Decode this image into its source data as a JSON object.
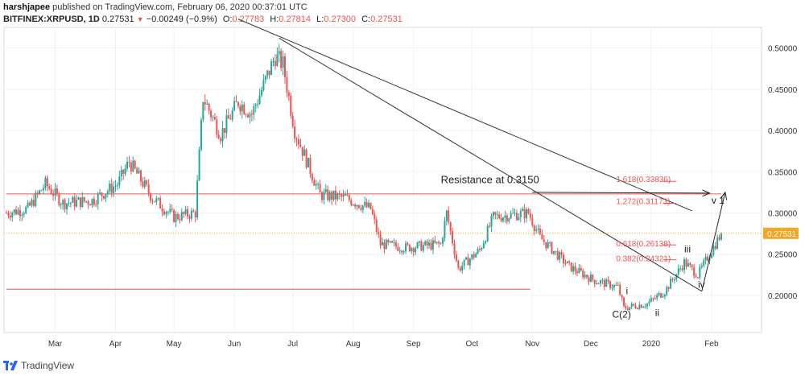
{
  "header": {
    "publisher": "harshjapee",
    "published_text": "published on TradingView.com, February 06, 2020 00:37:01 UTC",
    "symbol": "BITFINEX:XRPUSD, 1D",
    "last": "0.27531",
    "change": "−0.00249 (−0.9%)",
    "open_label": "O:",
    "open": "0.27783",
    "high_label": "H:",
    "high": "0.27814",
    "low_label": "L:",
    "low": "0.27300",
    "close_label": "C:",
    "close": "0.27531"
  },
  "footer": {
    "brand": "TradingView"
  },
  "colors": {
    "up": "#26a69a",
    "down": "#ef5350",
    "support": "#ef5350",
    "price_line": "#f5a623",
    "trendline": "#333333",
    "fib": "#ef5350"
  },
  "chart_data": {
    "type": "candlestick",
    "ylim": [
      0.155,
      0.525
    ],
    "y_ticks": [
      "0.50000",
      "0.45000",
      "0.40000",
      "0.35000",
      "0.30000",
      "0.25000",
      "0.20000"
    ],
    "y_tick_values": [
      0.5,
      0.45,
      0.4,
      0.35,
      0.3,
      0.25,
      0.2
    ],
    "x_ticks": [
      "Mar",
      "Apr",
      "May",
      "Jun",
      "Jul",
      "Aug",
      "Sep",
      "Oct",
      "Nov",
      "Dec",
      "2020",
      "Feb"
    ],
    "x_tick_dates": [
      "2019-03-01",
      "2019-04-01",
      "2019-05-01",
      "2019-06-01",
      "2019-07-01",
      "2019-08-01",
      "2019-09-01",
      "2019-10-01",
      "2019-11-01",
      "2019-12-01",
      "2020-01-01",
      "2020-02-01"
    ],
    "date_range": [
      "2019-02-04",
      "2020-02-06"
    ],
    "last_price": 0.27531,
    "last_price_label": "0.27531",
    "price_path": [
      [
        "2019-02-04",
        0.3
      ],
      [
        "2019-02-15",
        0.305
      ],
      [
        "2019-02-24",
        0.335
      ],
      [
        "2019-03-05",
        0.312
      ],
      [
        "2019-03-20",
        0.315
      ],
      [
        "2019-04-02",
        0.335
      ],
      [
        "2019-04-08",
        0.362
      ],
      [
        "2019-04-20",
        0.318
      ],
      [
        "2019-05-01",
        0.295
      ],
      [
        "2019-05-12",
        0.3
      ],
      [
        "2019-05-16",
        0.44
      ],
      [
        "2019-05-25",
        0.395
      ],
      [
        "2019-06-03",
        0.435
      ],
      [
        "2019-06-10",
        0.42
      ],
      [
        "2019-06-22",
        0.49
      ],
      [
        "2019-06-26",
        0.48
      ],
      [
        "2019-07-02",
        0.4
      ],
      [
        "2019-07-15",
        0.322
      ],
      [
        "2019-07-28",
        0.318
      ],
      [
        "2019-08-10",
        0.305
      ],
      [
        "2019-08-15",
        0.262
      ],
      [
        "2019-08-28",
        0.258
      ],
      [
        "2019-09-15",
        0.262
      ],
      [
        "2019-09-18",
        0.3
      ],
      [
        "2019-09-24",
        0.232
      ],
      [
        "2019-10-05",
        0.255
      ],
      [
        "2019-10-12",
        0.295
      ],
      [
        "2019-10-30",
        0.3
      ],
      [
        "2019-11-05",
        0.27
      ],
      [
        "2019-11-20",
        0.235
      ],
      [
        "2019-12-03",
        0.218
      ],
      [
        "2019-12-15",
        0.21
      ],
      [
        "2019-12-18",
        0.185
      ],
      [
        "2019-12-30",
        0.19
      ],
      [
        "2020-01-08",
        0.205
      ],
      [
        "2020-01-18",
        0.24
      ],
      [
        "2020-01-25",
        0.225
      ],
      [
        "2020-02-06",
        0.27531
      ]
    ],
    "horizontal_lines": [
      {
        "price": 0.323,
        "from": "2019-02-04",
        "to": "2020-02-06"
      },
      {
        "price": 0.2075,
        "from": "2019-02-04",
        "to": "2019-10-31"
      }
    ],
    "trendlines": [
      {
        "from": [
          "2019-06-03",
          0.535
        ],
        "to": [
          "2020-01-22",
          0.3025
        ]
      },
      {
        "from": [
          "2019-06-24",
          0.512
        ],
        "to": [
          "2020-01-27",
          0.205
        ]
      }
    ],
    "arrows": [
      {
        "from": [
          "2019-11-01",
          0.325
        ],
        "to": [
          "2020-01-31",
          0.324
        ]
      },
      {
        "from": [
          "2020-01-27",
          0.205
        ],
        "to": [
          "2020-02-08",
          0.325
        ]
      }
    ],
    "annotations": [
      {
        "text": "Resistance at 0.3150",
        "date": "2019-09-15",
        "price": 0.336
      },
      {
        "text": "1.618(0.33836)",
        "date": "2019-12-14",
        "price": 0.3375
      },
      {
        "text": "1.272(0.31173)",
        "date": "2019-12-14",
        "price": 0.3105
      },
      {
        "text": "0.618(0.26138)",
        "date": "2019-12-14",
        "price": 0.2595
      },
      {
        "text": "0.382(0.24321)",
        "date": "2019-12-14",
        "price": 0.2415
      },
      {
        "text": "v 1",
        "date": "2020-02-01",
        "price": 0.311
      },
      {
        "text": "iii",
        "date": "2020-01-18",
        "price": 0.252
      },
      {
        "text": "iv",
        "date": "2020-01-25",
        "price": 0.209
      },
      {
        "text": "i",
        "date": "2019-12-19",
        "price": 0.2015
      },
      {
        "text": "ii",
        "date": "2020-01-03",
        "price": 0.175
      },
      {
        "text": "C(2)",
        "date": "2019-12-12",
        "price": 0.173
      }
    ],
    "fib_ticks": [
      {
        "price": 0.3383,
        "from": "2020-01-07",
        "to": "2020-01-14"
      },
      {
        "price": 0.3117,
        "from": "2020-01-07",
        "to": "2020-01-14"
      },
      {
        "price": 0.2613,
        "from": "2020-01-07",
        "to": "2020-01-14"
      },
      {
        "price": 0.2432,
        "from": "2020-01-07",
        "to": "2020-01-14"
      }
    ]
  }
}
